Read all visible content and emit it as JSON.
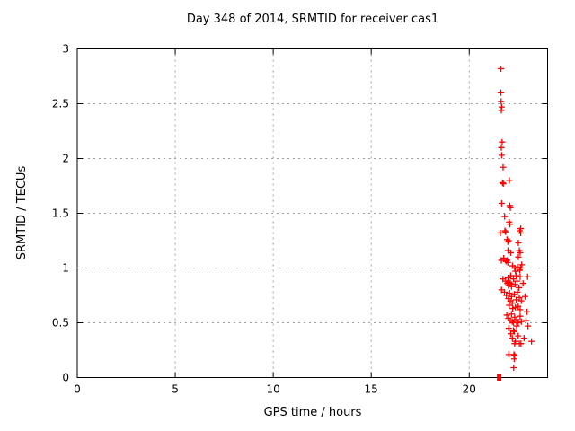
{
  "chart_data": {
    "type": "scatter",
    "title": "Day 348 of 2014, SRMTID for receiver cas1",
    "xlabel": "GPS time / hours",
    "ylabel": "SRMTID / TECUs",
    "xlim": [
      0,
      24
    ],
    "ylim": [
      0,
      3
    ],
    "xticks": [
      0,
      5,
      10,
      15,
      20
    ],
    "yticks": [
      0,
      0.5,
      1,
      1.5,
      2,
      2.5,
      3
    ],
    "grid": true,
    "legend": "none",
    "marker": "plus",
    "marker_color": "#ff0000",
    "grid_color": "#a0a0a0",
    "axis_color": "#000000",
    "points": [
      [
        21.62,
        2.82
      ],
      [
        21.62,
        2.6
      ],
      [
        21.63,
        2.52
      ],
      [
        21.66,
        2.47
      ],
      [
        21.64,
        2.44
      ],
      [
        21.68,
        2.15
      ],
      [
        21.64,
        2.1
      ],
      [
        21.66,
        2.03
      ],
      [
        21.73,
        1.92
      ],
      [
        21.7,
        1.78
      ],
      [
        21.74,
        1.77
      ],
      [
        22.05,
        1.8
      ],
      [
        21.66,
        1.59
      ],
      [
        22.07,
        1.57
      ],
      [
        22.1,
        1.55
      ],
      [
        21.81,
        1.47
      ],
      [
        22.04,
        1.42
      ],
      [
        22.08,
        1.4
      ],
      [
        21.82,
        1.34
      ],
      [
        22.58,
        1.34
      ],
      [
        21.59,
        1.32
      ],
      [
        21.86,
        1.33
      ],
      [
        22.63,
        1.36
      ],
      [
        22.63,
        1.32
      ],
      [
        21.93,
        1.26
      ],
      [
        21.97,
        1.24
      ],
      [
        22.02,
        1.25
      ],
      [
        22.51,
        1.23
      ],
      [
        21.98,
        1.16
      ],
      [
        22.12,
        1.14
      ],
      [
        22.56,
        1.16
      ],
      [
        22.6,
        1.14
      ],
      [
        21.64,
        1.07
      ],
      [
        21.76,
        1.09
      ],
      [
        21.88,
        1.06
      ],
      [
        21.94,
        1.07
      ],
      [
        21.97,
        1.05
      ],
      [
        22.51,
        1.1
      ],
      [
        22.21,
        1.02
      ],
      [
        22.32,
        1.0
      ],
      [
        22.46,
        1.01
      ],
      [
        22.58,
        0.98
      ],
      [
        22.36,
        0.97
      ],
      [
        22.68,
        1.03
      ],
      [
        22.64,
        1.0
      ],
      [
        22.98,
        0.92
      ],
      [
        21.72,
        0.9
      ],
      [
        21.86,
        0.88
      ],
      [
        21.94,
        0.86
      ],
      [
        22.0,
        0.84
      ],
      [
        22.04,
        0.87
      ],
      [
        22.1,
        0.86
      ],
      [
        22.16,
        0.83
      ],
      [
        22.26,
        0.9
      ],
      [
        22.34,
        0.85
      ],
      [
        22.44,
        0.88
      ],
      [
        22.54,
        0.82
      ],
      [
        22.6,
        0.92
      ],
      [
        22.12,
        0.93
      ],
      [
        21.98,
        0.91
      ],
      [
        22.4,
        0.93
      ],
      [
        22.75,
        0.86
      ],
      [
        21.65,
        0.8
      ],
      [
        21.8,
        0.78
      ],
      [
        21.9,
        0.75
      ],
      [
        22.0,
        0.72
      ],
      [
        22.06,
        0.77
      ],
      [
        22.1,
        0.7
      ],
      [
        22.16,
        0.74
      ],
      [
        22.2,
        0.68
      ],
      [
        22.3,
        0.76
      ],
      [
        22.4,
        0.71
      ],
      [
        22.5,
        0.65
      ],
      [
        22.56,
        0.73
      ],
      [
        22.6,
        0.62
      ],
      [
        22.66,
        0.7
      ],
      [
        22.22,
        0.63
      ],
      [
        22.04,
        0.66
      ],
      [
        22.36,
        0.64
      ],
      [
        22.46,
        0.78
      ],
      [
        22.85,
        0.74
      ],
      [
        21.92,
        0.57
      ],
      [
        22.0,
        0.54
      ],
      [
        22.1,
        0.52
      ],
      [
        22.16,
        0.58
      ],
      [
        22.26,
        0.5
      ],
      [
        22.32,
        0.55
      ],
      [
        22.42,
        0.53
      ],
      [
        22.5,
        0.5
      ],
      [
        22.6,
        0.56
      ],
      [
        22.66,
        0.51
      ],
      [
        22.2,
        0.51
      ],
      [
        22.95,
        0.6
      ],
      [
        22.9,
        0.52
      ],
      [
        22.02,
        0.45
      ],
      [
        22.12,
        0.4
      ],
      [
        22.2,
        0.36
      ],
      [
        22.26,
        0.43
      ],
      [
        22.32,
        0.31
      ],
      [
        22.36,
        0.33
      ],
      [
        22.42,
        0.47
      ],
      [
        22.5,
        0.38
      ],
      [
        22.56,
        0.31
      ],
      [
        23.18,
        0.33
      ],
      [
        22.64,
        0.31
      ],
      [
        22.3,
        0.42
      ],
      [
        23.0,
        0.47
      ],
      [
        22.8,
        0.36
      ],
      [
        22.02,
        0.21
      ],
      [
        22.28,
        0.21
      ],
      [
        22.32,
        0.2
      ],
      [
        22.3,
        0.17
      ],
      [
        22.27,
        0.09
      ]
    ],
    "square_points": [
      [
        21.53,
        0.0
      ]
    ]
  }
}
